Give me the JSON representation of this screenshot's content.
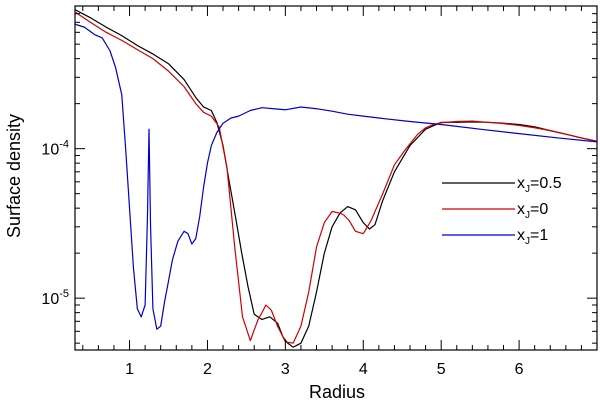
{
  "chart_data": {
    "type": "line",
    "title": "",
    "xlabel": "Radius",
    "ylabel": "Surface density",
    "xscale": "linear",
    "yscale": "log",
    "xlim": [
      0.3,
      7.0
    ],
    "ylim": [
      4.5e-06,
      0.0009
    ],
    "x_ticks": [
      {
        "value": 1,
        "label": "1"
      },
      {
        "value": 2,
        "label": "2"
      },
      {
        "value": 3,
        "label": "3"
      },
      {
        "value": 4,
        "label": "4"
      },
      {
        "value": 5,
        "label": "5"
      },
      {
        "value": 6,
        "label": "6"
      }
    ],
    "y_ticks": [
      {
        "value": 1e-05,
        "base": "10",
        "exponent": "-5"
      },
      {
        "value": 0.0001,
        "base": "10",
        "exponent": "-4"
      }
    ],
    "legend_position": "right",
    "series": [
      {
        "label_main": "x",
        "label_sub": "J",
        "label_rest": "=0.5",
        "color": "#000000",
        "x": [
          0.3,
          0.5,
          0.7,
          0.9,
          1.1,
          1.3,
          1.5,
          1.7,
          1.85,
          1.95,
          2.05,
          2.12,
          2.2,
          2.28,
          2.36,
          2.44,
          2.52,
          2.6,
          2.7,
          2.8,
          2.9,
          2.97,
          3.03,
          3.1,
          3.2,
          3.3,
          3.4,
          3.5,
          3.6,
          3.7,
          3.8,
          3.9,
          4.0,
          4.08,
          4.15,
          4.25,
          4.4,
          4.6,
          4.8,
          5.0,
          5.2,
          5.4,
          5.6,
          5.8,
          6.0,
          6.2,
          6.4,
          6.6,
          6.8,
          7.0
        ],
        "y": [
          0.00085,
          0.00075,
          0.00065,
          0.00057,
          0.00049,
          0.00043,
          0.00037,
          0.00029,
          0.00022,
          0.00019,
          0.00018,
          0.00015,
          0.000105,
          6e-05,
          3.5e-05,
          2e-05,
          1.2e-05,
          7.8e-06,
          7.2e-06,
          7.5e-06,
          6.8e-06,
          5.5e-06,
          5e-06,
          4.7e-06,
          5e-06,
          6.5e-06,
          1.1e-05,
          2e-05,
          3e-05,
          3.7e-05,
          4.1e-05,
          3.9e-05,
          3.2e-05,
          2.9e-05,
          3.1e-05,
          4.5e-05,
          7e-05,
          0.000105,
          0.000135,
          0.00015,
          0.00015,
          0.000151,
          0.00015,
          0.000148,
          0.000145,
          0.00014,
          0.000132,
          0.000125,
          0.000118,
          0.000112
        ]
      },
      {
        "label_main": "x",
        "label_sub": "J",
        "label_rest": "=0",
        "color": "#d00000",
        "x": [
          0.3,
          0.5,
          0.7,
          0.9,
          1.1,
          1.3,
          1.5,
          1.7,
          1.85,
          1.95,
          2.05,
          2.15,
          2.25,
          2.35,
          2.45,
          2.55,
          2.65,
          2.7,
          2.75,
          2.82,
          2.9,
          3.0,
          3.1,
          3.2,
          3.3,
          3.4,
          3.5,
          3.6,
          3.7,
          3.75,
          3.82,
          3.9,
          4.0,
          4.1,
          4.25,
          4.4,
          4.55,
          4.7,
          4.8,
          4.9,
          5.0,
          5.2,
          5.4,
          5.6,
          5.8,
          6.0,
          6.2,
          6.4,
          6.6,
          6.8,
          7.0
        ],
        "y": [
          0.00082,
          0.0007,
          0.0006,
          0.00053,
          0.00046,
          0.0004,
          0.00033,
          0.00026,
          0.0002,
          0.000175,
          0.000165,
          0.00014,
          7.5e-05,
          2.2e-05,
          7.5e-06,
          5.2e-06,
          7.2e-06,
          8e-06,
          9e-06,
          8.3e-06,
          6.5e-06,
          5.1e-06,
          5e-06,
          6.5e-06,
          1.1e-05,
          2.2e-05,
          3.2e-05,
          3.8e-05,
          3.7e-05,
          3.6e-05,
          3.3e-05,
          2.8e-05,
          2.7e-05,
          3.3e-05,
          5e-05,
          7.8e-05,
          0.0001,
          0.000125,
          0.000138,
          0.000145,
          0.000149,
          0.000152,
          0.000153,
          0.00015,
          0.000147,
          0.000143,
          0.000138,
          0.000132,
          0.000125,
          0.000118,
          0.000112
        ]
      },
      {
        "label_main": "x",
        "label_sub": "J",
        "label_rest": "=1",
        "color": "#0000c8",
        "x": [
          0.3,
          0.42,
          0.55,
          0.65,
          0.75,
          0.82,
          0.9,
          0.95,
          1.0,
          1.05,
          1.1,
          1.15,
          1.2,
          1.23,
          1.25,
          1.27,
          1.3,
          1.35,
          1.4,
          1.45,
          1.5,
          1.55,
          1.62,
          1.7,
          1.75,
          1.8,
          1.85,
          1.9,
          1.95,
          2.0,
          2.05,
          2.12,
          2.2,
          2.3,
          2.4,
          2.55,
          2.7,
          2.85,
          3.0,
          3.2,
          3.4,
          3.6,
          3.8,
          4.0,
          4.3,
          4.6,
          5.0,
          5.5,
          6.0,
          6.5,
          7.0
        ],
        "y": [
          0.00068,
          0.00065,
          0.00058,
          0.00055,
          0.00045,
          0.00035,
          0.00023,
          0.0001,
          4e-05,
          1.6e-05,
          8.5e-06,
          7.5e-06,
          9e-06,
          3.5e-05,
          0.000135,
          3e-05,
          8.5e-06,
          6.2e-06,
          6.5e-06,
          9.5e-06,
          1.3e-05,
          1.8e-05,
          2.4e-05,
          2.8e-05,
          2.7e-05,
          2.3e-05,
          2.5e-05,
          3.5e-05,
          5.5e-05,
          8e-05,
          0.000105,
          0.000128,
          0.000148,
          0.00016,
          0.000165,
          0.00018,
          0.000188,
          0.000185,
          0.000182,
          0.00019,
          0.000185,
          0.000178,
          0.00017,
          0.000165,
          0.000158,
          0.000152,
          0.000145,
          0.000135,
          0.000126,
          0.000118,
          0.000111
        ]
      }
    ]
  }
}
